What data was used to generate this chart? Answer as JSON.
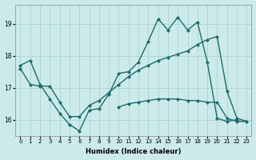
{
  "xlabel": "Humidex (Indice chaleur)",
  "x": [
    0,
    1,
    2,
    3,
    4,
    5,
    6,
    7,
    8,
    9,
    10,
    11,
    12,
    13,
    14,
    15,
    16,
    17,
    18,
    19,
    20,
    21,
    22,
    23
  ],
  "s1": [
    17.7,
    17.85,
    17.1,
    16.65,
    16.2,
    15.85,
    15.65,
    16.3,
    16.35,
    16.8,
    17.45,
    17.5,
    17.8,
    18.45,
    19.15,
    18.8,
    19.2,
    18.8,
    19.05,
    17.8,
    16.05,
    15.95,
    16.0,
    null
  ],
  "s2": [
    17.6,
    17.1,
    17.05,
    17.05,
    16.55,
    16.1,
    16.1,
    16.45,
    16.6,
    16.85,
    17.1,
    17.35,
    17.55,
    17.7,
    17.85,
    17.95,
    18.05,
    18.15,
    18.35,
    18.5,
    18.6,
    16.9,
    16.05,
    15.95
  ],
  "s3": [
    17.6,
    null,
    null,
    null,
    null,
    null,
    null,
    null,
    null,
    null,
    null,
    null,
    null,
    null,
    null,
    null,
    null,
    null,
    null,
    null,
    null,
    null,
    null,
    null
  ],
  "s4": [
    null,
    null,
    null,
    null,
    null,
    null,
    null,
    null,
    null,
    null,
    16.4,
    16.5,
    16.55,
    16.6,
    16.65,
    16.65,
    16.65,
    16.6,
    16.6,
    16.55,
    16.55,
    16.05,
    15.95,
    15.95
  ],
  "ylim": [
    15.5,
    19.6
  ],
  "xlim": [
    -0.5,
    23.5
  ],
  "yticks": [
    16,
    17,
    18,
    19
  ],
  "xticks": [
    0,
    1,
    2,
    3,
    4,
    5,
    6,
    7,
    8,
    9,
    10,
    11,
    12,
    13,
    14,
    15,
    16,
    17,
    18,
    19,
    20,
    21,
    22,
    23
  ],
  "bg_color": "#cceaea",
  "grid_color": "#aad4d4",
  "line_color": "#1e6b6b",
  "markersize": 2.5,
  "linewidth": 1.0,
  "tick_fontsize": 5.0,
  "xlabel_fontsize": 6.0
}
